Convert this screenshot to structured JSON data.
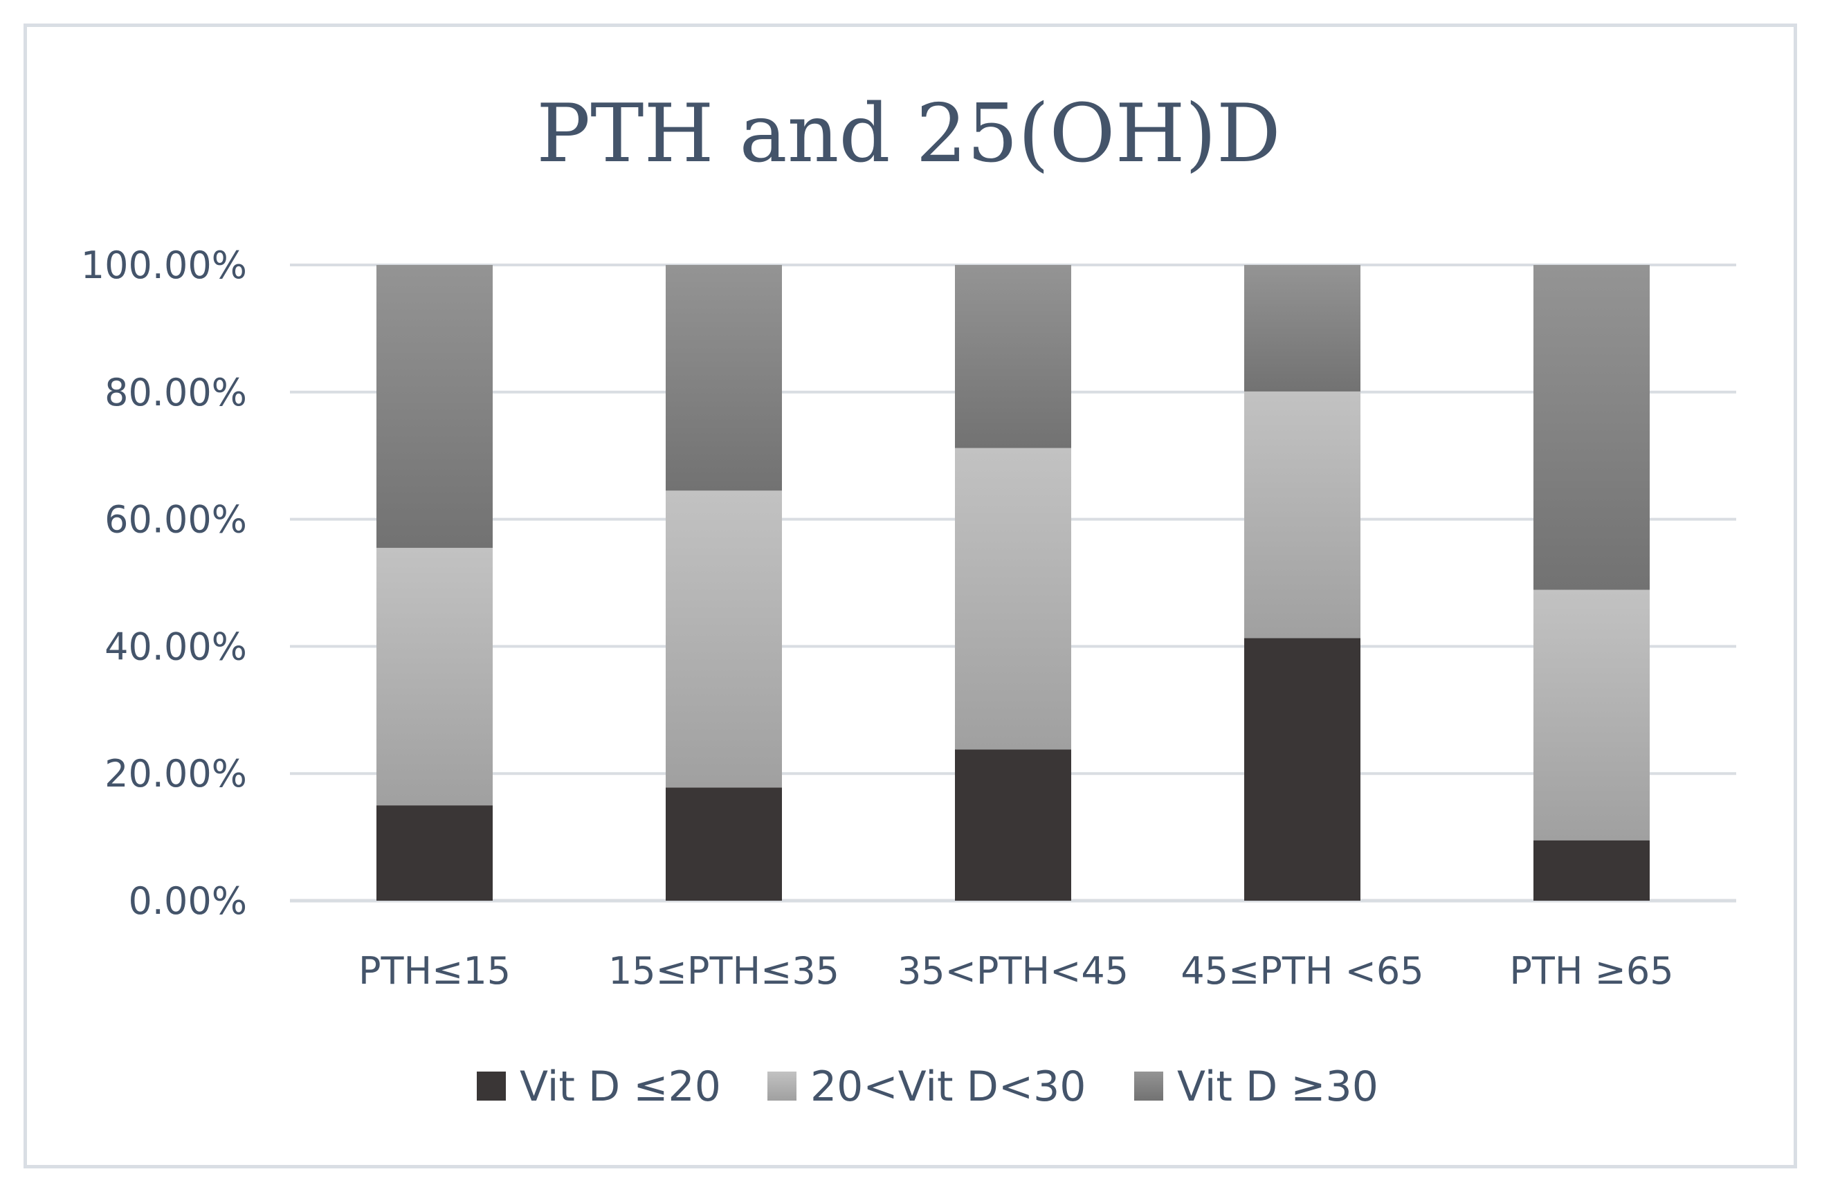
{
  "chart_data": {
    "type": "bar",
    "stacked": true,
    "title": "PTH and 25(OH)D",
    "xlabel": "",
    "ylabel": "",
    "categories": [
      "PTH≤15",
      "15≤PTH≤35",
      "35<PTH<45",
      "45≤PTH <65",
      "PTH ≥65"
    ],
    "series": [
      {
        "name": "Vit D ≤20",
        "values": [
          15.0,
          17.8,
          23.8,
          41.3,
          9.5
        ],
        "color": "#3a3636"
      },
      {
        "name": "20<Vit D<30",
        "values": [
          40.5,
          46.7,
          47.4,
          38.8,
          39.4
        ],
        "color": "#b0b0b0"
      },
      {
        "name": "Vit D ≥30",
        "values": [
          44.5,
          35.5,
          28.8,
          19.9,
          51.1
        ],
        "color": "#858585"
      }
    ],
    "ylim": [
      0,
      100
    ],
    "yticks": [
      "0.00%",
      "20.00%",
      "40.00%",
      "60.00%",
      "80.00%",
      "100.00%"
    ],
    "grid": true,
    "legend": "bottom"
  }
}
